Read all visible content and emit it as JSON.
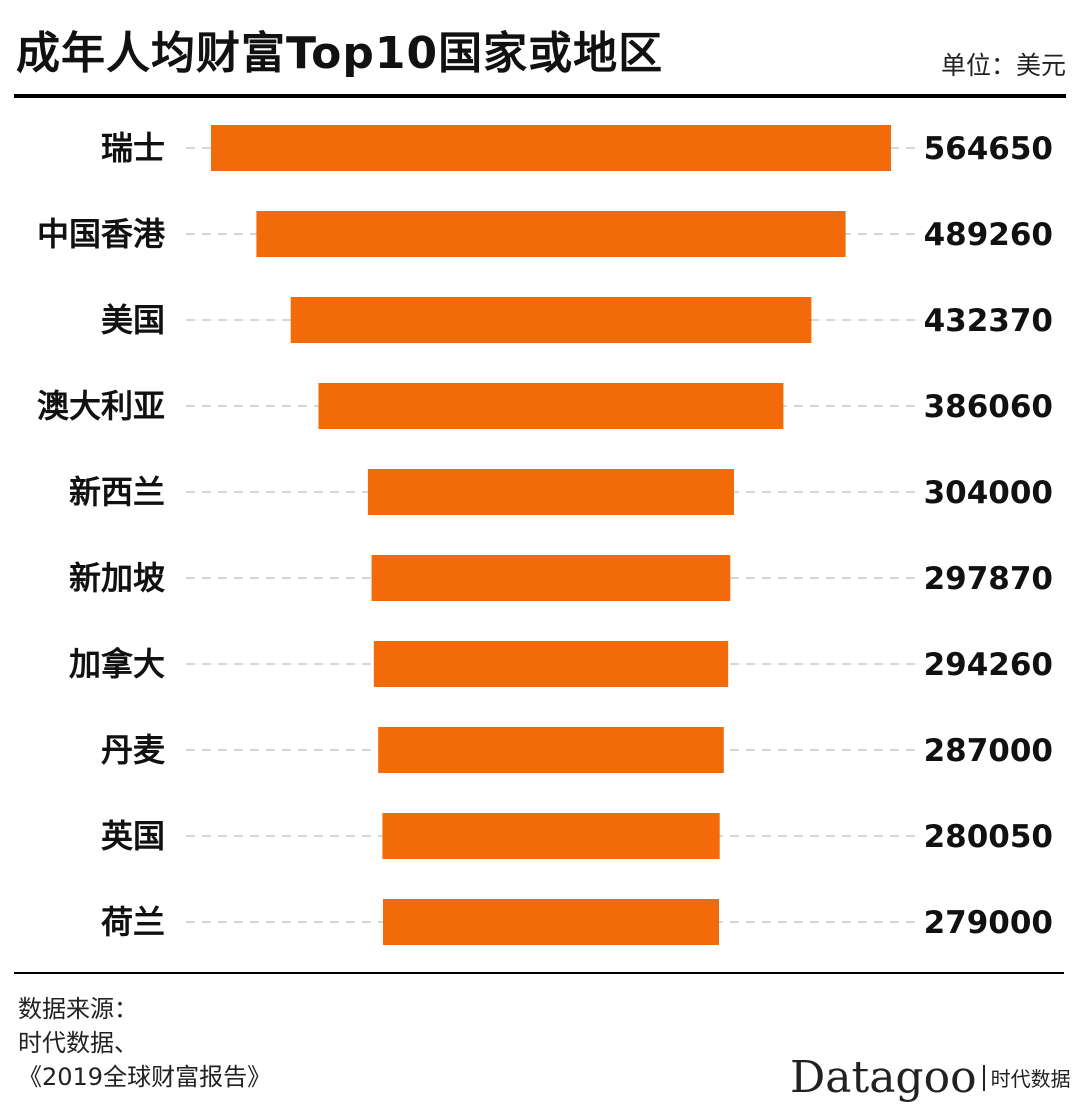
{
  "header": {
    "title": "成年人均财富Top10国家或地区",
    "unit": "单位：美元"
  },
  "source": {
    "line1": "数据来源：",
    "line2": "时代数据、",
    "line3": "《2019全球财富报告》"
  },
  "logo": {
    "word": "Datagoo",
    "cn": "时代数据"
  },
  "colors": {
    "bar": "#f26a0a",
    "text": "#111111",
    "gridline": "#c8c8c8"
  },
  "chart_data": {
    "type": "bar",
    "orientation": "horizontal",
    "alignment": "centered",
    "title": "成年人均财富Top10国家或地区",
    "unit": "单位：美元",
    "categories": [
      "瑞士",
      "中国香港",
      "美国",
      "澳大利亚",
      "新西兰",
      "新加坡",
      "加拿大",
      "丹麦",
      "英国",
      "荷兰"
    ],
    "values": [
      564650,
      489260,
      432370,
      386060,
      304000,
      297870,
      294260,
      287000,
      280050,
      279000
    ],
    "value_labels": [
      "564650",
      "489260",
      "432370",
      "386060",
      "304000",
      "297870",
      "294260",
      "287000",
      "280050",
      "279000"
    ],
    "grid": false
  }
}
